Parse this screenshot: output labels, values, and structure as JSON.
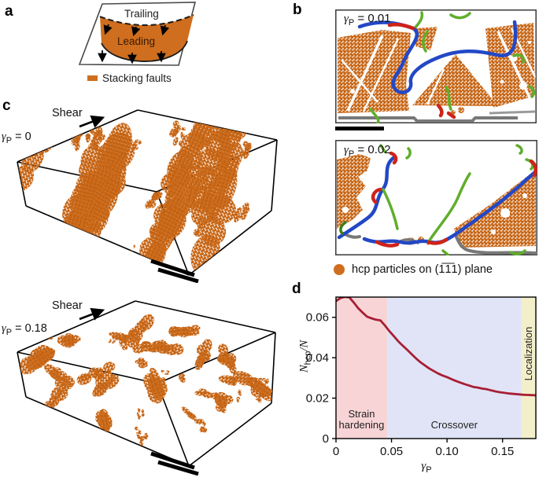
{
  "colors": {
    "orange": "#cf6e1e",
    "orange2": "#c06113",
    "curve": "#a81e34",
    "blue": "#2348c5",
    "green": "#5fae2c",
    "dark_green": "#3c7d1c",
    "red": "#cf2318",
    "gray": "#787878",
    "light_gray": "#9a9a9a",
    "pink": "#f8d4d6",
    "lavender": "#e1e4f6",
    "yellow": "#f2efca",
    "frame": "#000000"
  },
  "panels": {
    "a": {
      "label": "a",
      "trailing": "Trailing",
      "leading": "Leading",
      "legend": "Stacking faults"
    },
    "b": {
      "label": "b",
      "snap1": {
        "gamma": "γ",
        "sub": "P",
        "eq": " = 0.01"
      },
      "snap2": {
        "gamma": "γ",
        "sub": "P",
        "eq": " = 0.02"
      },
      "caption": "hcp particles on (1̅1̅1) plane"
    },
    "c": {
      "label": "c",
      "shear": "Shear",
      "snap1": {
        "gamma": "γ",
        "sub": "P",
        "eq": " = 0"
      },
      "snap2": {
        "gamma": "γ",
        "sub": "P",
        "eq": " = 0.18"
      }
    },
    "d": {
      "label": "d",
      "ylabel_parts": {
        "n1": "N",
        "sub": "hcp",
        "rest": "/N"
      },
      "xlabel_parts": {
        "gamma": "γ",
        "sub": "P"
      }
    }
  },
  "chart_data": {
    "type": "line",
    "title": "",
    "xlabel": "γ_P",
    "ylabel": "N_hcp/N",
    "xlim": [
      0,
      0.18
    ],
    "ylim": [
      0,
      0.07
    ],
    "grid": false,
    "xticks": [
      {
        "v": 0,
        "label": "0"
      },
      {
        "v": 0.05,
        "label": "0.05"
      },
      {
        "v": 0.1,
        "label": "0.10"
      },
      {
        "v": 0.15,
        "label": "0.15"
      }
    ],
    "yticks": [
      {
        "v": 0,
        "label": "0"
      },
      {
        "v": 0.02,
        "label": "0.02"
      },
      {
        "v": 0.04,
        "label": "0.04"
      },
      {
        "v": 0.06,
        "label": "0.06"
      }
    ],
    "regions": [
      {
        "label": "Strain hardening",
        "lines": [
          "Strain",
          "hardening"
        ],
        "x0": 0,
        "x1": 0.046,
        "color_key": "pink",
        "orientation": "horizontal"
      },
      {
        "label": "Crossover",
        "lines": [
          "Crossover"
        ],
        "x0": 0.046,
        "x1": 0.167,
        "color_key": "lavender",
        "orientation": "horizontal"
      },
      {
        "label": "Localization",
        "lines": [
          "Localization"
        ],
        "x0": 0.167,
        "x1": 0.18,
        "color_key": "yellow",
        "orientation": "vertical"
      }
    ],
    "series": [
      {
        "name": "N_hcp/N",
        "color_key": "curve",
        "x": [
          0.0,
          0.004,
          0.008,
          0.012,
          0.016,
          0.02,
          0.024,
          0.028,
          0.032,
          0.036,
          0.04,
          0.044,
          0.048,
          0.052,
          0.056,
          0.06,
          0.064,
          0.068,
          0.072,
          0.076,
          0.08,
          0.084,
          0.088,
          0.092,
          0.096,
          0.1,
          0.104,
          0.108,
          0.112,
          0.116,
          0.12,
          0.124,
          0.128,
          0.132,
          0.136,
          0.14,
          0.144,
          0.148,
          0.152,
          0.156,
          0.16,
          0.164,
          0.168,
          0.172,
          0.176,
          0.18
        ],
        "y": [
          0.068,
          0.0695,
          0.0701,
          0.0699,
          0.0673,
          0.0645,
          0.0623,
          0.0603,
          0.0595,
          0.0588,
          0.0585,
          0.056,
          0.0532,
          0.0507,
          0.0482,
          0.046,
          0.044,
          0.0418,
          0.0397,
          0.0378,
          0.0362,
          0.0347,
          0.0334,
          0.0322,
          0.0312,
          0.0304,
          0.0294,
          0.0285,
          0.0277,
          0.0269,
          0.0262,
          0.0255,
          0.0252,
          0.0247,
          0.0244,
          0.0238,
          0.0233,
          0.0229,
          0.0226,
          0.0223,
          0.0221,
          0.0219,
          0.0217,
          0.0216,
          0.0215,
          0.0214
        ]
      }
    ]
  }
}
